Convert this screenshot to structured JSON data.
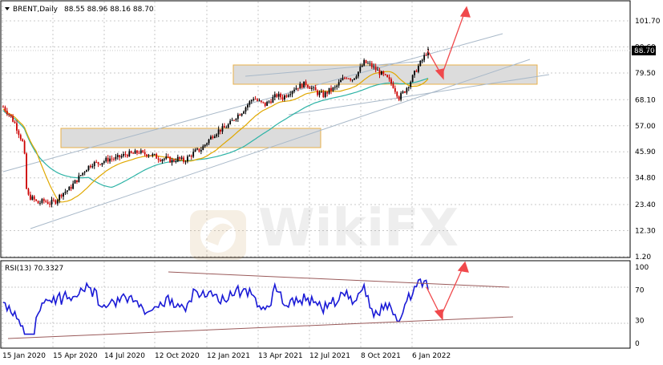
{
  "main_header": {
    "symbol": "BRENT,Daily",
    "ohlc": "88.55 88.96 88.16 88.70"
  },
  "rsi_header": "RSI(13) 70.3327",
  "last_price_badge": "88.70",
  "watermark": "WikiFX",
  "colors": {
    "bull": "#000000",
    "bear": "#cc0000",
    "ma_slow": "#2db3a6",
    "ma_fast": "#e0a800",
    "channel": "#a9b9c9",
    "zone_fill": "#dcdcdc",
    "zone_edge": "#e8b04a",
    "arrow": "#f0494c",
    "rsi": "#1a1ad6",
    "rsi_lines": "#9a5a5a",
    "grid": "#c8c8c8"
  },
  "icons": {
    "collapse": "triangle-down-icon",
    "logo": "wikifx-logo-icon"
  },
  "chart_data": [
    {
      "type": "candlestick",
      "title": "BRENT,Daily",
      "x_tick_labels": [
        "15 Jan 2020",
        "15 Apr 2020",
        "14 Jul 2020",
        "12 Oct 2020",
        "12 Jan 2021",
        "13 Apr 2021",
        "12 Jul 2021",
        "8 Oct 2021",
        "6 Jan 2022"
      ],
      "y_tick_labels": [
        "101.70",
        "90.60",
        "79.50",
        "68.10",
        "57.00",
        "45.90",
        "34.80",
        "23.40",
        "12.30",
        "1.20"
      ],
      "ylim": [
        1.2,
        101.7
      ],
      "last_price": 88.7,
      "grid": true,
      "close_path": [
        [
          0,
          65
        ],
        [
          3,
          62
        ],
        [
          6,
          58
        ],
        [
          8,
          54
        ],
        [
          10,
          50
        ],
        [
          11,
          44
        ],
        [
          12,
          30
        ],
        [
          13,
          27
        ],
        [
          15,
          26
        ],
        [
          18,
          24
        ],
        [
          21,
          25
        ],
        [
          24,
          24
        ],
        [
          27,
          25
        ],
        [
          30,
          28
        ],
        [
          34,
          30
        ],
        [
          37,
          33
        ],
        [
          40,
          36
        ],
        [
          43,
          39
        ],
        [
          46,
          41
        ],
        [
          49,
          41
        ],
        [
          52,
          42
        ],
        [
          55,
          43
        ],
        [
          58,
          43
        ],
        [
          61,
          44
        ],
        [
          64,
          45
        ],
        [
          67,
          45
        ],
        [
          70,
          46
        ],
        [
          72,
          45
        ],
        [
          75,
          45
        ],
        [
          78,
          44
        ],
        [
          81,
          43
        ],
        [
          84,
          43
        ],
        [
          87,
          42
        ],
        [
          90,
          43
        ],
        [
          93,
          42
        ],
        [
          96,
          44
        ],
        [
          99,
          46
        ],
        [
          102,
          47
        ],
        [
          105,
          50
        ],
        [
          108,
          53
        ],
        [
          111,
          55
        ],
        [
          114,
          56
        ],
        [
          117,
          58
        ],
        [
          120,
          61
        ],
        [
          123,
          63
        ],
        [
          126,
          66
        ],
        [
          129,
          69
        ],
        [
          132,
          67
        ],
        [
          135,
          66
        ],
        [
          138,
          68
        ],
        [
          141,
          70
        ],
        [
          144,
          69
        ],
        [
          147,
          71
        ],
        [
          150,
          73
        ],
        [
          153,
          74
        ],
        [
          156,
          75
        ],
        [
          159,
          73
        ],
        [
          162,
          71
        ],
        [
          165,
          70
        ],
        [
          168,
          72
        ],
        [
          171,
          73
        ],
        [
          174,
          76
        ],
        [
          177,
          78
        ],
        [
          180,
          77
        ],
        [
          183,
          80
        ],
        [
          186,
          84
        ],
        [
          189,
          83
        ],
        [
          192,
          81
        ],
        [
          195,
          79
        ],
        [
          198,
          77
        ],
        [
          201,
          74
        ],
        [
          204,
          69
        ],
        [
          207,
          72
        ],
        [
          210,
          76
        ],
        [
          213,
          81
        ],
        [
          216,
          85
        ],
        [
          218,
          88
        ],
        [
          219,
          88.7
        ]
      ],
      "candle_count": 220
    },
    {
      "type": "line",
      "title": "RSI(13) 70.3327",
      "y_tick_labels": [
        "100",
        "70",
        "30",
        "0"
      ],
      "ylim": [
        0,
        100
      ],
      "reference_levels": [
        70,
        30
      ],
      "last_value": 70.3327
    }
  ]
}
